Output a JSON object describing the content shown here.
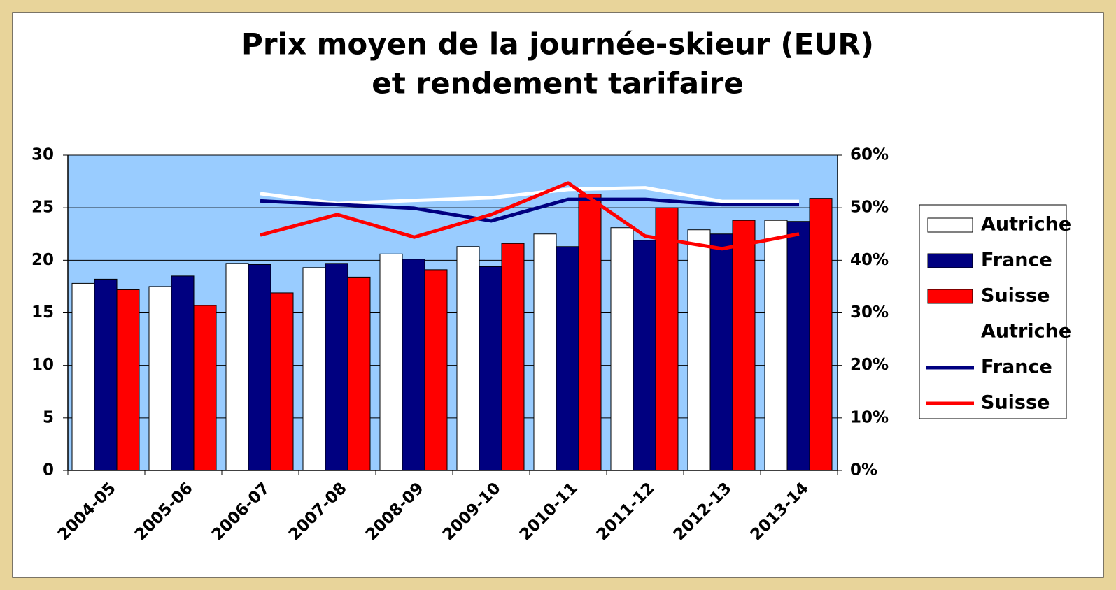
{
  "chart_data": {
    "type": "bar",
    "title": [
      "Prix moyen de la journée-skieur (EUR)",
      "et rendement tarifaire"
    ],
    "categories": [
      "2004-05",
      "2005-06",
      "2006-07",
      "2007-08",
      "2008-09",
      "2009-10",
      "2010-11",
      "2011-12",
      "2012-13",
      "2013-14"
    ],
    "series": [
      {
        "name": "Autriche",
        "type": "bar",
        "color": "#ffffff",
        "values": [
          17.8,
          17.5,
          19.7,
          19.3,
          20.6,
          21.3,
          22.5,
          23.1,
          22.9,
          23.8
        ]
      },
      {
        "name": "France",
        "type": "bar",
        "color": "#000080",
        "values": [
          18.2,
          18.5,
          19.6,
          19.7,
          20.1,
          19.4,
          21.3,
          21.9,
          22.5,
          23.7
        ]
      },
      {
        "name": "Suisse",
        "type": "bar",
        "color": "#ff0000",
        "values": [
          17.2,
          15.7,
          16.9,
          18.4,
          19.1,
          21.6,
          26.3,
          25.0,
          23.8,
          25.9
        ]
      },
      {
        "name": "Autriche",
        "type": "line",
        "axis": "y2",
        "color": "#ffffff",
        "values": [
          null,
          null,
          52.7,
          50.8,
          51.4,
          51.9,
          53.5,
          53.8,
          51.2,
          51.2
        ]
      },
      {
        "name": "France",
        "type": "line",
        "axis": "y2",
        "color": "#000080",
        "values": [
          null,
          null,
          51.3,
          50.6,
          49.9,
          47.5,
          51.6,
          51.6,
          50.6,
          50.6
        ]
      },
      {
        "name": "Suisse",
        "type": "line",
        "axis": "y2",
        "color": "#ff0000",
        "values": [
          null,
          null,
          44.8,
          48.7,
          44.4,
          48.7,
          54.7,
          44.6,
          42.2,
          45.0
        ]
      }
    ],
    "ylim": [
      0,
      30
    ],
    "yticks": [
      0,
      5,
      10,
      15,
      20,
      25,
      30
    ],
    "y2lim": [
      0,
      60
    ],
    "y2ticks": [
      {
        "value": 0,
        "label": "0%"
      },
      {
        "value": 10,
        "label": "10%"
      },
      {
        "value": 20,
        "label": "20%"
      },
      {
        "value": 30,
        "label": "30%"
      },
      {
        "value": 40,
        "label": "40%"
      },
      {
        "value": 50,
        "label": "50%"
      },
      {
        "value": 60,
        "label": "60%"
      }
    ],
    "grid": true,
    "legend": "right",
    "plot_background": "#99ccff"
  }
}
